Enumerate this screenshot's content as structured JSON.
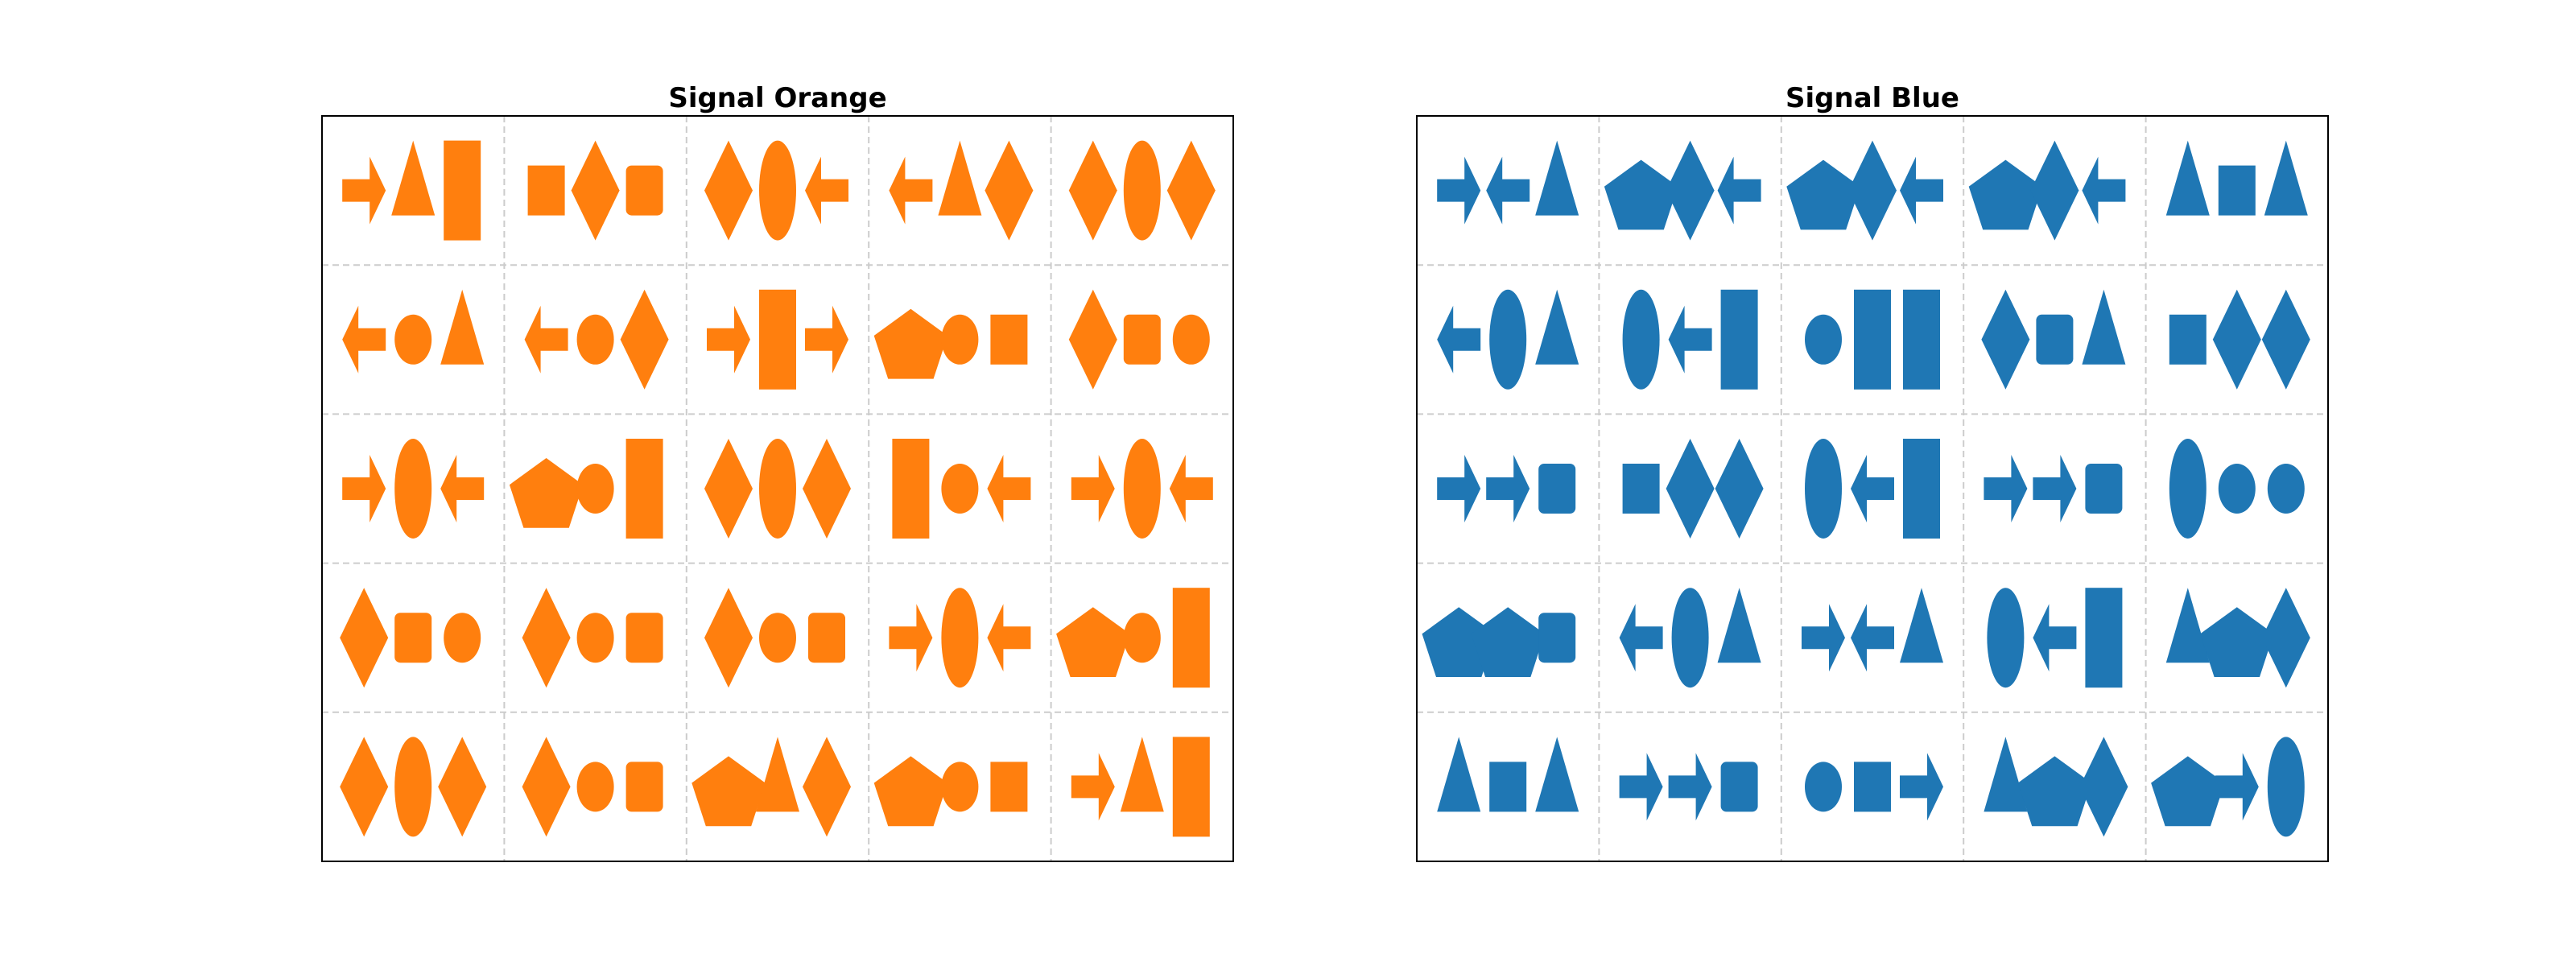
{
  "panels": [
    {
      "title": "Signal Orange",
      "color": "#ff7f0e",
      "rows": [
        [
          [
            "arrow-right",
            "triangle",
            "rect-tall"
          ],
          [
            "square",
            "diamond",
            "rounded-rect"
          ],
          [
            "diamond",
            "ellipse",
            "arrow-left"
          ],
          [
            "arrow-left",
            "triangle",
            "diamond"
          ],
          [
            "diamond",
            "ellipse",
            "diamond"
          ]
        ],
        [
          [
            "arrow-left",
            "circle",
            "triangle"
          ],
          [
            "arrow-left",
            "circle",
            "diamond"
          ],
          [
            "arrow-right",
            "rect-tall",
            "arrow-right"
          ],
          [
            "pentagon",
            "circle",
            "square"
          ],
          [
            "diamond",
            "rounded-rect",
            "circle"
          ]
        ],
        [
          [
            "arrow-right",
            "ellipse",
            "arrow-left"
          ],
          [
            "pentagon",
            "circle",
            "rect-tall"
          ],
          [
            "diamond",
            "ellipse",
            "diamond"
          ],
          [
            "rect-tall",
            "circle",
            "arrow-left"
          ],
          [
            "arrow-right",
            "ellipse",
            "arrow-left"
          ]
        ],
        [
          [
            "diamond",
            "rounded-rect",
            "circle"
          ],
          [
            "diamond",
            "circle",
            "rounded-rect"
          ],
          [
            "diamond",
            "circle",
            "rounded-rect"
          ],
          [
            "arrow-right",
            "ellipse",
            "arrow-left"
          ],
          [
            "pentagon",
            "circle",
            "rect-tall"
          ]
        ],
        [
          [
            "diamond",
            "ellipse",
            "diamond"
          ],
          [
            "diamond",
            "circle",
            "rounded-rect"
          ],
          [
            "pentagon",
            "triangle",
            "diamond"
          ],
          [
            "pentagon",
            "circle",
            "square"
          ],
          [
            "arrow-right",
            "triangle",
            "rect-tall"
          ]
        ]
      ]
    },
    {
      "title": "Signal Blue",
      "color": "#1f77b4",
      "rows": [
        [
          [
            "arrow-right",
            "arrow-left",
            "triangle"
          ],
          [
            "pentagon",
            "diamond",
            "arrow-left"
          ],
          [
            "pentagon",
            "diamond",
            "arrow-left"
          ],
          [
            "pentagon",
            "diamond",
            "arrow-left"
          ],
          [
            "triangle",
            "square",
            "triangle"
          ]
        ],
        [
          [
            "arrow-left",
            "ellipse",
            "triangle"
          ],
          [
            "ellipse",
            "arrow-left",
            "rect-tall"
          ],
          [
            "circle",
            "rect-tall",
            "rect-tall"
          ],
          [
            "diamond",
            "rounded-rect",
            "triangle"
          ],
          [
            "square",
            "diamond",
            "diamond"
          ]
        ],
        [
          [
            "arrow-right",
            "arrow-right",
            "rounded-rect"
          ],
          [
            "square",
            "diamond",
            "diamond"
          ],
          [
            "ellipse",
            "arrow-left",
            "rect-tall"
          ],
          [
            "arrow-right",
            "arrow-right",
            "rounded-rect"
          ],
          [
            "ellipse",
            "circle",
            "circle"
          ]
        ],
        [
          [
            "pentagon",
            "pentagon",
            "rounded-rect"
          ],
          [
            "arrow-left",
            "ellipse",
            "triangle"
          ],
          [
            "arrow-right",
            "arrow-left",
            "triangle"
          ],
          [
            "ellipse",
            "arrow-left",
            "rect-tall"
          ],
          [
            "triangle",
            "pentagon",
            "diamond"
          ]
        ],
        [
          [
            "triangle",
            "square",
            "triangle"
          ],
          [
            "arrow-right",
            "arrow-right",
            "rounded-rect"
          ],
          [
            "circle",
            "square",
            "arrow-right"
          ],
          [
            "triangle",
            "pentagon",
            "diamond"
          ],
          [
            "pentagon",
            "arrow-right",
            "ellipse"
          ]
        ]
      ]
    }
  ]
}
